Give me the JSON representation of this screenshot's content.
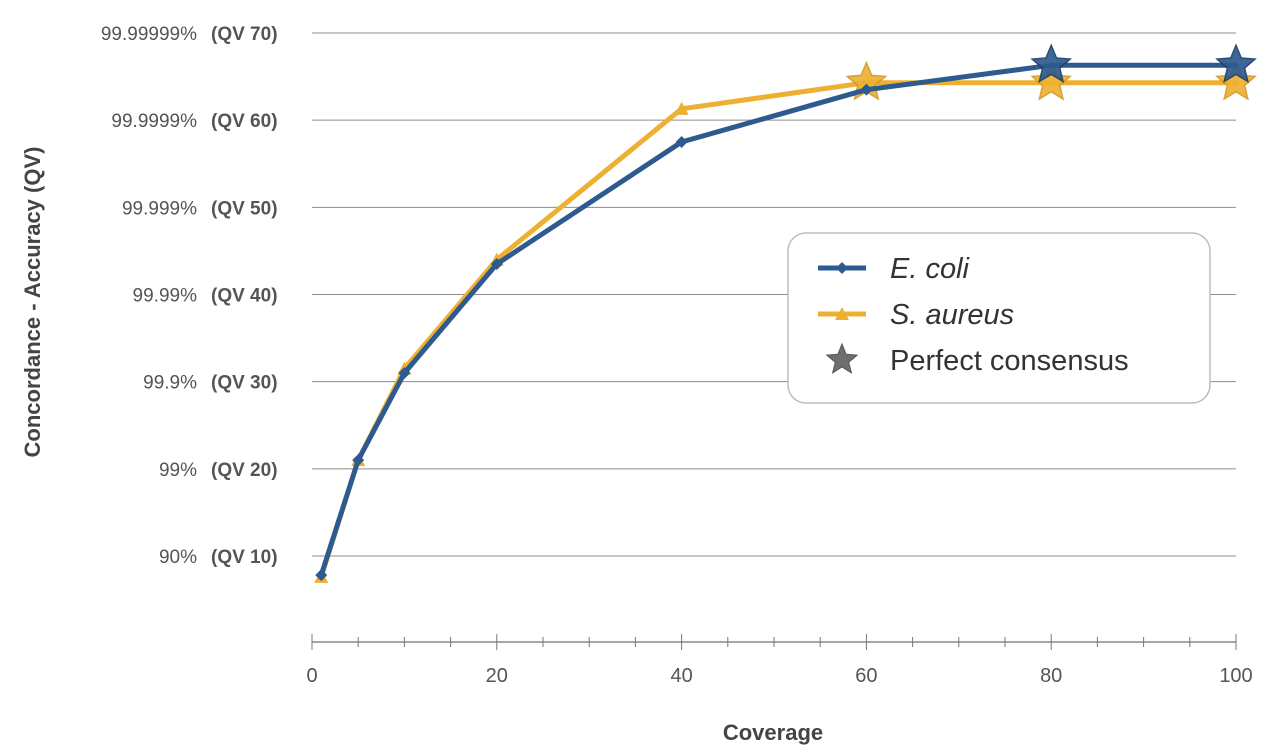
{
  "chart_data": {
    "type": "line",
    "xlabel": "Coverage",
    "ylabel": "Concordance - Accuracy (QV)",
    "xlim": [
      0,
      100
    ],
    "ylim": [
      0,
      70
    ],
    "x_ticks": [
      0,
      20,
      40,
      60,
      80,
      100
    ],
    "y_ticks": [
      {
        "value": 10,
        "pct": "90%",
        "qv": "(QV 10)"
      },
      {
        "value": 20,
        "pct": "99%",
        "qv": "(QV 20)"
      },
      {
        "value": 30,
        "pct": "99.9%",
        "qv": "(QV 30)"
      },
      {
        "value": 40,
        "pct": "99.99%",
        "qv": "(QV 40)"
      },
      {
        "value": 50,
        "pct": "99.999%",
        "qv": "(QV 50)"
      },
      {
        "value": 60,
        "pct": "99.9999%",
        "qv": "(QV 60)"
      },
      {
        "value": 70,
        "pct": "99.99999%",
        "qv": "(QV 70)"
      }
    ],
    "grid": true,
    "legend_position": "center-right",
    "series": [
      {
        "name": "E. coli",
        "color": "#2e5b8f",
        "marker": "diamond",
        "x": [
          1,
          5,
          10,
          20,
          40,
          60,
          80,
          100
        ],
        "y": [
          7.8,
          21,
          31,
          43.5,
          57.5,
          63.5,
          66.3,
          66.3
        ],
        "perfect_consensus_x": [
          80,
          100
        ]
      },
      {
        "name": "S. aureus",
        "color": "#eeb031",
        "marker": "triangle",
        "x": [
          1,
          5,
          10,
          20,
          40,
          60,
          80,
          100
        ],
        "y": [
          7.6,
          21,
          31.5,
          44,
          61.3,
          64.3,
          64.3,
          64.3
        ],
        "perfect_consensus_x": [
          60,
          80,
          100
        ]
      }
    ],
    "legend": [
      {
        "label": "E. coli",
        "italic": true,
        "icon": "line-diamond-blue"
      },
      {
        "label": "S. aureus",
        "italic": true,
        "icon": "line-triangle-orange"
      },
      {
        "label": "Perfect consensus",
        "italic": false,
        "icon": "star-gray"
      }
    ]
  }
}
